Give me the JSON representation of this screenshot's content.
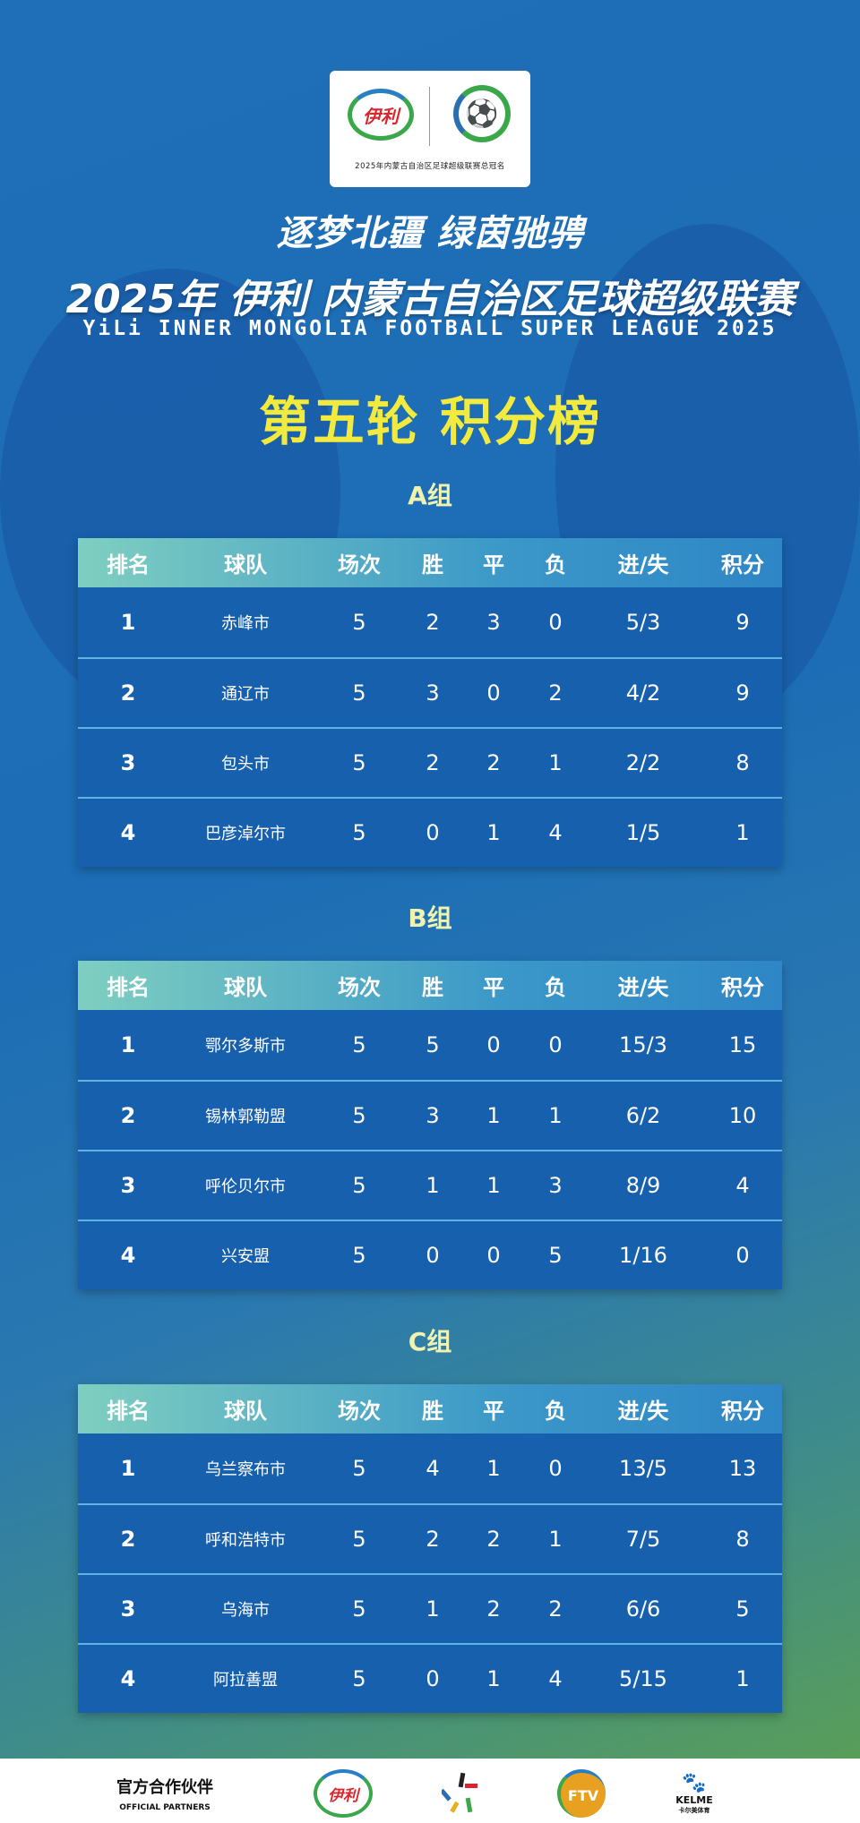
{
  "header": {
    "logo_caption": "2025年内蒙古自治区足球超级联赛总冠名",
    "sponsor_logo_text": "伊利",
    "slogan": "逐梦北疆 绿茵驰骋",
    "title": "2025年 伊利 内蒙古自治区足球超级联赛",
    "title_en": "YiLi INNER MONGOLIA FOOTBALL SUPER LEAGUE 2025",
    "round": "第五轮 积分榜"
  },
  "columns": [
    "排名",
    "球队",
    "场次",
    "胜",
    "平",
    "负",
    "进/失",
    "积分"
  ],
  "groups": [
    {
      "name": "A组",
      "rows": [
        [
          "1",
          "赤峰市",
          "5",
          "2",
          "3",
          "0",
          "5/3",
          "9"
        ],
        [
          "2",
          "通辽市",
          "5",
          "3",
          "0",
          "2",
          "4/2",
          "9"
        ],
        [
          "3",
          "包头市",
          "5",
          "2",
          "2",
          "1",
          "2/2",
          "8"
        ],
        [
          "4",
          "巴彦淖尔市",
          "5",
          "0",
          "1",
          "4",
          "1/5",
          "1"
        ]
      ]
    },
    {
      "name": "B组",
      "rows": [
        [
          "1",
          "鄂尔多斯市",
          "5",
          "5",
          "0",
          "0",
          "15/3",
          "15"
        ],
        [
          "2",
          "锡林郭勒盟",
          "5",
          "3",
          "1",
          "1",
          "6/2",
          "10"
        ],
        [
          "3",
          "呼伦贝尔市",
          "5",
          "1",
          "1",
          "3",
          "8/9",
          "4"
        ],
        [
          "4",
          "兴安盟",
          "5",
          "0",
          "0",
          "5",
          "1/16",
          "0"
        ]
      ]
    },
    {
      "name": "C组",
      "rows": [
        [
          "1",
          "乌兰察布市",
          "5",
          "4",
          "1",
          "0",
          "13/5",
          "13"
        ],
        [
          "2",
          "呼和浩特市",
          "5",
          "2",
          "2",
          "1",
          "7/5",
          "8"
        ],
        [
          "3",
          "乌海市",
          "5",
          "1",
          "2",
          "2",
          "6/6",
          "5"
        ],
        [
          "4",
          "阿拉善盟",
          "5",
          "0",
          "1",
          "4",
          "5/15",
          "1"
        ]
      ]
    }
  ],
  "footer": {
    "partners_zh": "官方合作伙伴",
    "partners_en": "OFFICIAL PARTNERS",
    "sponsors": [
      {
        "name": "yili",
        "text": "伊利"
      },
      {
        "name": "star-logo",
        "text": ""
      },
      {
        "name": "ftv",
        "text": "FTV"
      },
      {
        "name": "kelme",
        "text": "KELME",
        "sub": "卡尔美体育"
      }
    ]
  },
  "colors": {
    "background": "#1f6fb8",
    "header_row_start": "#7fcfc0",
    "row": "#1660ae",
    "round_title": "#f2ea3e",
    "accent_green": "#5fa150"
  }
}
